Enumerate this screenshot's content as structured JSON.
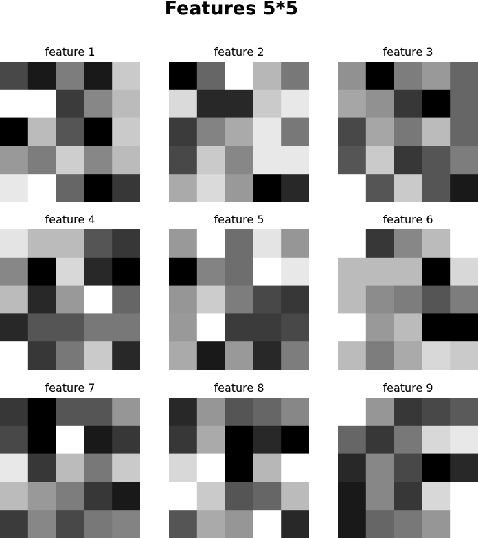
{
  "title": "Features 5*5",
  "chart_data": {
    "type": "heatmap",
    "title": "Features 5*5",
    "colormap": "gray",
    "value_range": [
      0,
      255
    ],
    "rows": 5,
    "cols": 5,
    "panels": [
      {
        "title": "feature 1",
        "values": [
          [
            72,
            25,
            125,
            25,
            202
          ],
          [
            255,
            255,
            59,
            135,
            187
          ],
          [
            0,
            187,
            85,
            0,
            202
          ],
          [
            153,
            125,
            206,
            135,
            187
          ],
          [
            232,
            255,
            102,
            0,
            55
          ]
        ]
      },
      {
        "title": "feature 2",
        "values": [
          [
            0,
            102,
            255,
            183,
            120
          ],
          [
            218,
            40,
            40,
            202,
            232
          ],
          [
            59,
            131,
            170,
            232,
            120
          ],
          [
            72,
            202,
            135,
            232,
            232
          ],
          [
            170,
            218,
            153,
            0,
            40
          ]
        ]
      },
      {
        "title": "feature 3",
        "values": [
          [
            145,
            0,
            125,
            153,
            102
          ],
          [
            166,
            145,
            55,
            0,
            102
          ],
          [
            72,
            166,
            120,
            187,
            102
          ],
          [
            85,
            202,
            55,
            85,
            125
          ],
          [
            255,
            85,
            202,
            85,
            25
          ]
        ]
      },
      {
        "title": "feature 4",
        "values": [
          [
            228,
            187,
            187,
            85,
            55
          ],
          [
            135,
            0,
            216,
            40,
            0
          ],
          [
            187,
            40,
            153,
            255,
            102
          ],
          [
            40,
            85,
            85,
            120,
            120
          ],
          [
            255,
            55,
            120,
            202,
            40
          ]
        ]
      },
      {
        "title": "feature 5",
        "values": [
          [
            153,
            255,
            110,
            228,
            150
          ],
          [
            0,
            131,
            110,
            255,
            232
          ],
          [
            150,
            204,
            125,
            72,
            55
          ],
          [
            153,
            255,
            59,
            59,
            72
          ],
          [
            170,
            25,
            153,
            40,
            125
          ]
        ]
      },
      {
        "title": "feature 6",
        "values": [
          [
            255,
            55,
            135,
            187,
            255
          ],
          [
            187,
            187,
            187,
            0,
            216
          ],
          [
            187,
            140,
            125,
            85,
            125
          ],
          [
            255,
            153,
            187,
            0,
            0
          ],
          [
            187,
            125,
            170,
            216,
            202
          ]
        ]
      },
      {
        "title": "feature 7",
        "values": [
          [
            55,
            0,
            85,
            85,
            150
          ],
          [
            72,
            0,
            255,
            25,
            55
          ],
          [
            232,
            55,
            187,
            120,
            202
          ],
          [
            187,
            153,
            125,
            55,
            25
          ],
          [
            59,
            135,
            72,
            120,
            131
          ]
        ]
      },
      {
        "title": "feature 8",
        "values": [
          [
            40,
            150,
            85,
            102,
            135
          ],
          [
            55,
            170,
            0,
            40,
            0
          ],
          [
            216,
            255,
            0,
            183,
            255
          ],
          [
            255,
            202,
            85,
            102,
            187
          ],
          [
            85,
            170,
            150,
            255,
            40
          ]
        ]
      },
      {
        "title": "feature 9",
        "values": [
          [
            255,
            150,
            55,
            72,
            90
          ],
          [
            102,
            55,
            120,
            216,
            232
          ],
          [
            40,
            135,
            72,
            0,
            40
          ],
          [
            25,
            135,
            55,
            216,
            255
          ],
          [
            25,
            102,
            120,
            150,
            255
          ]
        ]
      }
    ]
  }
}
